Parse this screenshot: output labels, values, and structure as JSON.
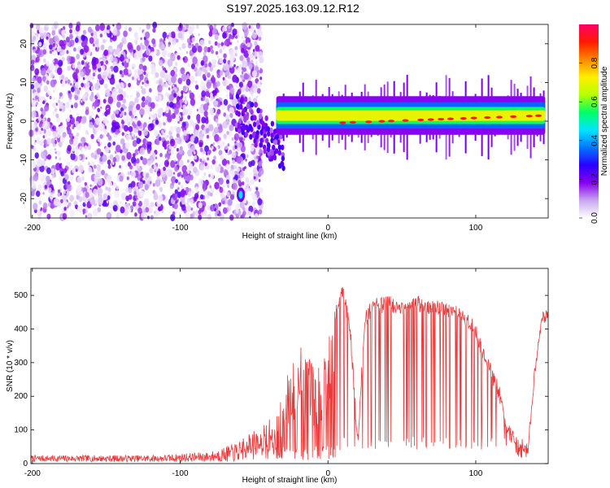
{
  "title": "S197.2025.163.09.12.R12",
  "chart_data": [
    {
      "type": "heatmap",
      "xlabel": "Height of straight line (km)",
      "ylabel": "Frequency (Hz)",
      "xlim": [
        -201,
        149
      ],
      "ylim": [
        -25,
        25
      ],
      "xticks": [
        -200,
        -100,
        0,
        100
      ],
      "yticks": [
        -20,
        -10,
        0,
        10,
        20
      ],
      "colorbar": {
        "label": "Normalized spectral amplitude",
        "range": [
          0,
          1
        ],
        "ticks": [
          "0.0",
          "0.2",
          "0.4",
          "0.6",
          "0.8"
        ],
        "colors": [
          "#ffffff",
          "#c9a6f0",
          "#8800ee",
          "#2a00ff",
          "#0077ff",
          "#00e5ff",
          "#00ff66",
          "#b6ff00",
          "#ffee00",
          "#ff8800",
          "#ff1a00",
          "#ff0066"
        ]
      },
      "features": [
        {
          "name": "scattered noise",
          "x_range": [
            -201,
            -60
          ],
          "freq_range": [
            -25,
            25
          ],
          "amplitude": [
            0.05,
            0.2
          ]
        },
        {
          "name": "signal track",
          "x_range": [
            -35,
            149
          ],
          "freq_start": -1,
          "freq_end": 1.5,
          "amplitude_peak": 1.0
        },
        {
          "name": "low blob",
          "x": -59,
          "freq": -19,
          "amplitude": 0.5
        }
      ]
    },
    {
      "type": "line",
      "xlabel": "Height of straight line (km)",
      "ylabel": "SNR (10 * v/v)",
      "xlim": [
        -201,
        149
      ],
      "ylim": [
        0,
        580
      ],
      "xticks": [
        -200,
        -100,
        0,
        100
      ],
      "yticks": [
        0,
        100,
        200,
        300,
        400,
        500
      ],
      "color": "#e83a3a",
      "series": [
        {
          "values_description": "SNR vs height",
          "x": [
            -201,
            -180,
            -160,
            -140,
            -120,
            -100,
            -80,
            -70,
            -60,
            -50,
            -40,
            -30,
            -25,
            -20,
            -15,
            -10,
            -5,
            0,
            5,
            10,
            15,
            20,
            25,
            30,
            40,
            50,
            60,
            70,
            80,
            90,
            100,
            105,
            110,
            115,
            120,
            125,
            130,
            135,
            140,
            145,
            149
          ],
          "y": [
            15,
            18,
            15,
            20,
            18,
            25,
            30,
            45,
            60,
            90,
            120,
            200,
            280,
            350,
            300,
            280,
            300,
            380,
            460,
            540,
            430,
            80,
            450,
            490,
            500,
            490,
            500,
            490,
            480,
            470,
            420,
            350,
            300,
            250,
            150,
            100,
            60,
            50,
            300,
            450,
            460
          ]
        }
      ]
    }
  ]
}
